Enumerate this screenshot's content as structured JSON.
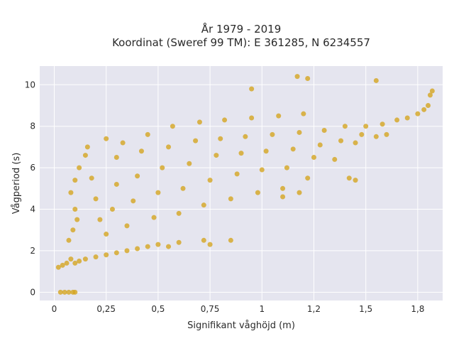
{
  "chart_data": {
    "type": "scatter",
    "title": "År 1979 - 2019",
    "subtitle": "Koordinat (Sweref 99 TM): E 361285, N 6234557",
    "xlabel": "Signifikant våghöjd (m)",
    "ylabel": "Vågperiod (s)",
    "xlim": [
      -0.07,
      1.87
    ],
    "ylim": [
      -0.4,
      10.9
    ],
    "x_ticks": [
      0,
      0.25,
      0.5,
      0.75,
      1,
      1.25,
      1.5,
      1.75
    ],
    "x_tick_labels": [
      "0",
      "0,25",
      "0,5",
      "0,75",
      "1",
      "1,2",
      "1,5",
      "1,8"
    ],
    "y_ticks": [
      0,
      2,
      4,
      6,
      8,
      10
    ],
    "y_tick_labels": [
      "0",
      "2",
      "4",
      "6",
      "8",
      "10"
    ],
    "grid": true,
    "plot_background": "#e5e5ef",
    "grid_color": "#ffffff",
    "marker_color": "#d4a520",
    "series": [
      {
        "values": [
          {
            "x": 0.03,
            "y": 0.0
          },
          {
            "x": 0.05,
            "y": 0.0
          },
          {
            "x": 0.07,
            "y": 0.0
          },
          {
            "x": 0.09,
            "y": 0.0
          },
          {
            "x": 0.1,
            "y": 0.0
          },
          {
            "x": 0.02,
            "y": 1.2
          },
          {
            "x": 0.04,
            "y": 1.3
          },
          {
            "x": 0.06,
            "y": 1.4
          },
          {
            "x": 0.08,
            "y": 1.6
          },
          {
            "x": 0.1,
            "y": 1.4
          },
          {
            "x": 0.12,
            "y": 1.5
          },
          {
            "x": 0.15,
            "y": 1.6
          },
          {
            "x": 0.2,
            "y": 1.7
          },
          {
            "x": 0.25,
            "y": 1.8
          },
          {
            "x": 0.3,
            "y": 1.9
          },
          {
            "x": 0.35,
            "y": 2.0
          },
          {
            "x": 0.4,
            "y": 2.1
          },
          {
            "x": 0.45,
            "y": 2.2
          },
          {
            "x": 0.5,
            "y": 2.3
          },
          {
            "x": 0.55,
            "y": 2.2
          },
          {
            "x": 0.6,
            "y": 2.4
          },
          {
            "x": 0.07,
            "y": 2.5
          },
          {
            "x": 0.09,
            "y": 3.0
          },
          {
            "x": 0.11,
            "y": 3.5
          },
          {
            "x": 0.1,
            "y": 4.0
          },
          {
            "x": 0.08,
            "y": 4.8
          },
          {
            "x": 0.1,
            "y": 5.4
          },
          {
            "x": 0.12,
            "y": 6.0
          },
          {
            "x": 0.15,
            "y": 6.6
          },
          {
            "x": 0.16,
            "y": 7.0
          },
          {
            "x": 0.18,
            "y": 5.5
          },
          {
            "x": 0.2,
            "y": 4.5
          },
          {
            "x": 0.22,
            "y": 3.5
          },
          {
            "x": 0.25,
            "y": 2.8
          },
          {
            "x": 0.28,
            "y": 4.0
          },
          {
            "x": 0.3,
            "y": 5.2
          },
          {
            "x": 0.3,
            "y": 6.5
          },
          {
            "x": 0.33,
            "y": 7.2
          },
          {
            "x": 0.35,
            "y": 3.2
          },
          {
            "x": 0.38,
            "y": 4.4
          },
          {
            "x": 0.4,
            "y": 5.6
          },
          {
            "x": 0.42,
            "y": 6.8
          },
          {
            "x": 0.45,
            "y": 7.6
          },
          {
            "x": 0.48,
            "y": 3.6
          },
          {
            "x": 0.5,
            "y": 4.8
          },
          {
            "x": 0.52,
            "y": 6.0
          },
          {
            "x": 0.55,
            "y": 7.0
          },
          {
            "x": 0.57,
            "y": 8.0
          },
          {
            "x": 0.6,
            "y": 3.8
          },
          {
            "x": 0.62,
            "y": 5.0
          },
          {
            "x": 0.65,
            "y": 6.2
          },
          {
            "x": 0.68,
            "y": 7.3
          },
          {
            "x": 0.7,
            "y": 8.2
          },
          {
            "x": 0.72,
            "y": 4.2
          },
          {
            "x": 0.75,
            "y": 5.4
          },
          {
            "x": 0.78,
            "y": 6.6
          },
          {
            "x": 0.8,
            "y": 7.4
          },
          {
            "x": 0.82,
            "y": 8.3
          },
          {
            "x": 0.85,
            "y": 4.5
          },
          {
            "x": 0.88,
            "y": 5.7
          },
          {
            "x": 0.9,
            "y": 6.7
          },
          {
            "x": 0.92,
            "y": 7.5
          },
          {
            "x": 0.95,
            "y": 8.4
          },
          {
            "x": 0.98,
            "y": 4.8
          },
          {
            "x": 1.0,
            "y": 5.9
          },
          {
            "x": 1.02,
            "y": 6.8
          },
          {
            "x": 1.05,
            "y": 7.6
          },
          {
            "x": 1.08,
            "y": 8.5
          },
          {
            "x": 1.1,
            "y": 5.0
          },
          {
            "x": 1.12,
            "y": 6.0
          },
          {
            "x": 1.15,
            "y": 6.9
          },
          {
            "x": 1.18,
            "y": 7.7
          },
          {
            "x": 1.2,
            "y": 8.6
          },
          {
            "x": 1.22,
            "y": 5.5
          },
          {
            "x": 1.25,
            "y": 6.5
          },
          {
            "x": 1.28,
            "y": 7.1
          },
          {
            "x": 1.3,
            "y": 7.8
          },
          {
            "x": 1.35,
            "y": 6.4
          },
          {
            "x": 1.38,
            "y": 7.3
          },
          {
            "x": 1.4,
            "y": 8.0
          },
          {
            "x": 1.42,
            "y": 5.5
          },
          {
            "x": 1.45,
            "y": 7.2
          },
          {
            "x": 1.48,
            "y": 7.6
          },
          {
            "x": 1.5,
            "y": 8.0
          },
          {
            "x": 1.55,
            "y": 7.5
          },
          {
            "x": 1.58,
            "y": 8.1
          },
          {
            "x": 1.6,
            "y": 7.6
          },
          {
            "x": 1.65,
            "y": 8.3
          },
          {
            "x": 1.7,
            "y": 8.4
          },
          {
            "x": 1.75,
            "y": 8.6
          },
          {
            "x": 1.78,
            "y": 8.8
          },
          {
            "x": 1.8,
            "y": 9.0
          },
          {
            "x": 1.81,
            "y": 9.5
          },
          {
            "x": 1.82,
            "y": 9.7
          },
          {
            "x": 1.55,
            "y": 10.2
          },
          {
            "x": 1.17,
            "y": 10.4
          },
          {
            "x": 1.22,
            "y": 10.3
          },
          {
            "x": 0.95,
            "y": 9.8
          },
          {
            "x": 0.25,
            "y": 7.4
          },
          {
            "x": 0.75,
            "y": 2.3
          },
          {
            "x": 0.72,
            "y": 2.5
          },
          {
            "x": 0.85,
            "y": 2.5
          },
          {
            "x": 1.1,
            "y": 4.6
          },
          {
            "x": 1.18,
            "y": 4.8
          },
          {
            "x": 1.45,
            "y": 5.4
          }
        ]
      }
    ]
  }
}
